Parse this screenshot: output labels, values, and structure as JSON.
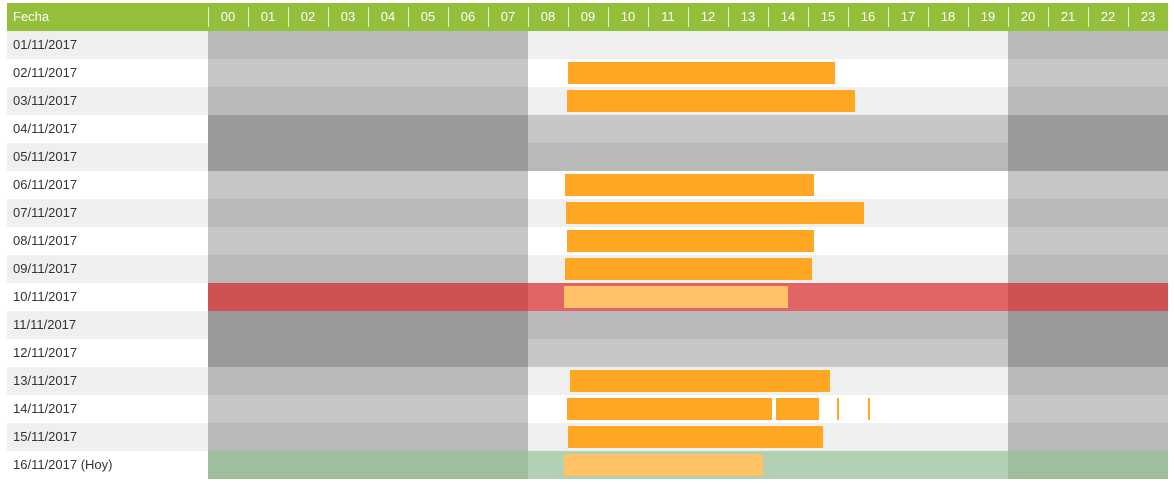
{
  "header": {
    "date_label": "Fecha",
    "hours": [
      "00",
      "01",
      "02",
      "03",
      "04",
      "05",
      "06",
      "07",
      "08",
      "09",
      "10",
      "11",
      "12",
      "13",
      "14",
      "15",
      "16",
      "17",
      "18",
      "19",
      "20",
      "21",
      "22",
      "23"
    ]
  },
  "colors": {
    "header": "#94bf3b",
    "bar": "#ffa723",
    "bar_today": "#ffc266",
    "alert_row": "#e06464",
    "today_row": "#b2d0b2"
  },
  "work_hours": [
    8,
    20
  ],
  "rows": [
    {
      "date": "01/11/2017",
      "type": "normal",
      "bars": []
    },
    {
      "date": "02/11/2017",
      "type": "normal",
      "bars": [
        [
          9.0,
          15.67
        ]
      ]
    },
    {
      "date": "03/11/2017",
      "type": "normal",
      "bars": [
        [
          8.98,
          16.18
        ]
      ]
    },
    {
      "date": "04/11/2017",
      "type": "weekend",
      "bars": []
    },
    {
      "date": "05/11/2017",
      "type": "weekend",
      "bars": []
    },
    {
      "date": "06/11/2017",
      "type": "normal",
      "bars": [
        [
          8.93,
          15.16
        ]
      ]
    },
    {
      "date": "07/11/2017",
      "type": "normal",
      "bars": [
        [
          8.96,
          16.4
        ]
      ]
    },
    {
      "date": "08/11/2017",
      "type": "normal",
      "bars": [
        [
          8.98,
          15.16
        ]
      ]
    },
    {
      "date": "09/11/2017",
      "type": "normal",
      "bars": [
        [
          8.93,
          15.11
        ]
      ]
    },
    {
      "date": "10/11/2017",
      "type": "alert",
      "bars": [
        [
          8.91,
          14.51
        ]
      ]
    },
    {
      "date": "11/11/2017",
      "type": "weekend",
      "bars": []
    },
    {
      "date": "12/11/2017",
      "type": "weekend",
      "bars": []
    },
    {
      "date": "13/11/2017",
      "type": "normal",
      "bars": [
        [
          9.04,
          15.56
        ]
      ]
    },
    {
      "date": "14/11/2017",
      "type": "normal",
      "bars": [
        [
          8.98,
          14.11
        ],
        [
          14.2,
          15.27
        ],
        [
          15.73,
          15.78
        ],
        [
          16.51,
          16.56
        ]
      ]
    },
    {
      "date": "15/11/2017",
      "type": "normal",
      "bars": [
        [
          9.0,
          15.38
        ]
      ]
    },
    {
      "date": "16/11/2017 (Hoy)",
      "type": "today",
      "bars": [
        [
          8.91,
          13.87
        ]
      ]
    }
  ]
}
